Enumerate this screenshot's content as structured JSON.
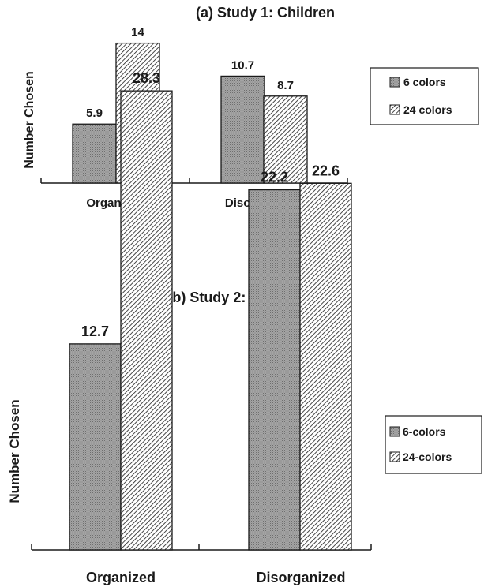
{
  "chart_data": [
    {
      "type": "bar",
      "title": "(a)  Study 1: Children",
      "ylabel": "Number Chosen",
      "xlabel": "",
      "categories": [
        "Organized",
        "Disorganized"
      ],
      "series": [
        {
          "name": "6 colors",
          "values": [
            5.9,
            10.7
          ],
          "labels": [
            "5.9",
            "10.7"
          ],
          "pattern": "dots"
        },
        {
          "name": "24 colors",
          "values": [
            14,
            8.7
          ],
          "labels": [
            "14",
            "8.7"
          ],
          "pattern": "hatch"
        }
      ],
      "ylim": [
        0,
        17.6
      ],
      "grid": false,
      "legend": "right"
    },
    {
      "type": "bar",
      "title": "(b) Study 2: Adults",
      "ylabel": "Number Chosen",
      "xlabel": "",
      "categories": [
        "Organized",
        "Disorganized"
      ],
      "series": [
        {
          "name": "6-colors",
          "values": [
            12.7,
            22.2
          ],
          "labels": [
            "12.7",
            "22.2"
          ],
          "pattern": "dots"
        },
        {
          "name": "24-colors",
          "values": [
            28.3,
            22.6
          ],
          "labels": [
            "28.3",
            "22.6"
          ],
          "pattern": "hatch"
        }
      ],
      "ylim": [
        0,
        33.9
      ],
      "grid": false,
      "legend": "right"
    }
  ],
  "colors": {
    "ink": "#1a1a1a",
    "bar_fill": "#9a9a9a",
    "background": "#ffffff"
  }
}
